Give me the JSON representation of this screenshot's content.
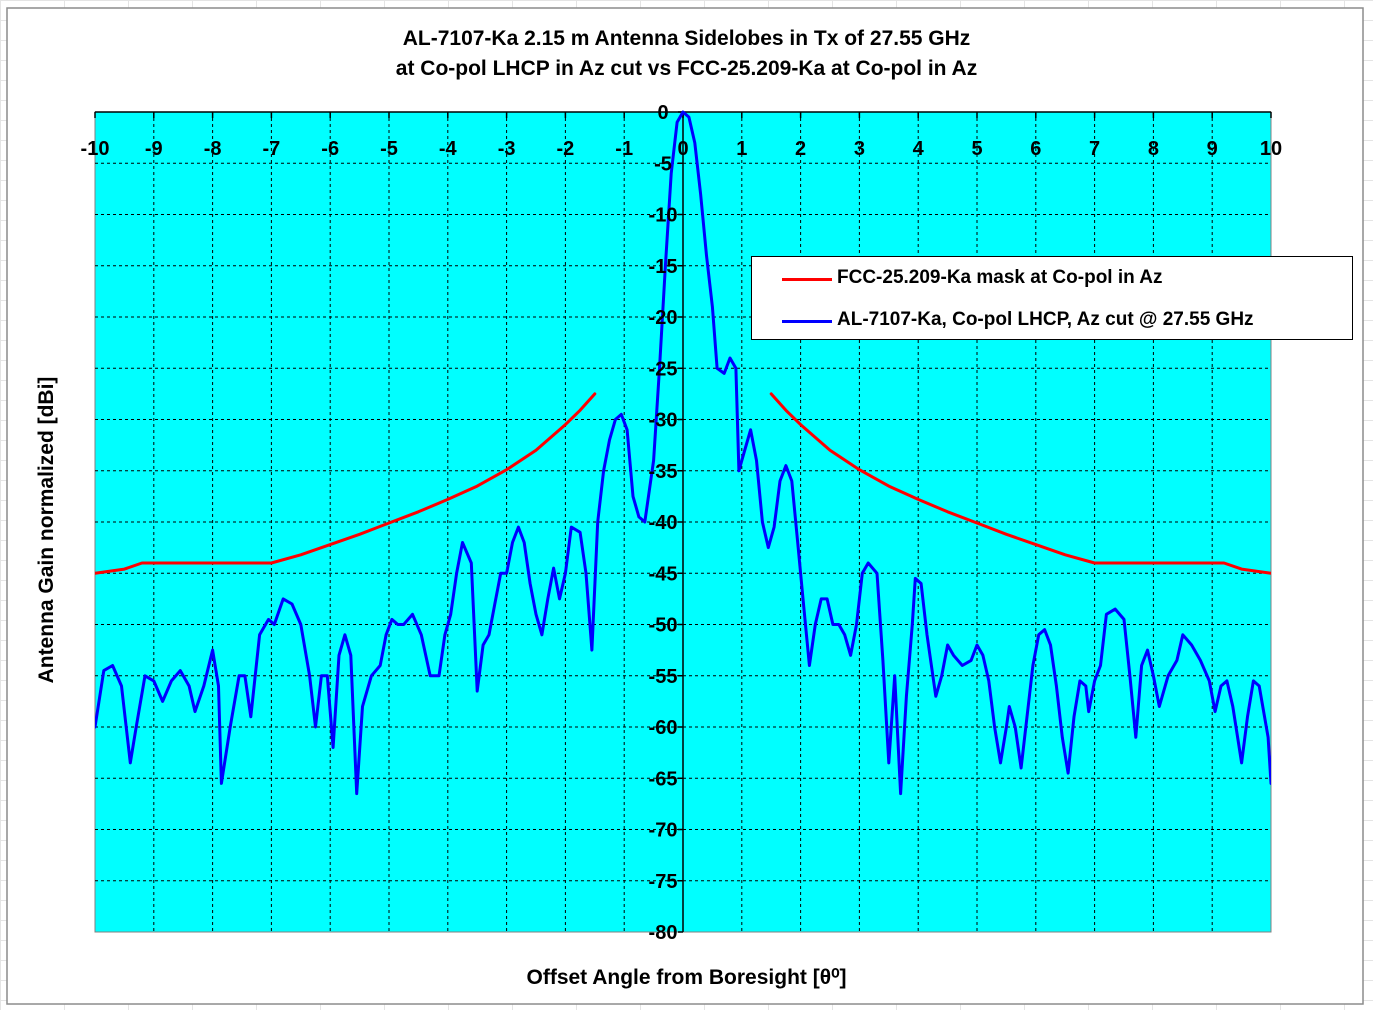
{
  "chart": {
    "title_line1": "AL-7107-Ka 2.15 m Antenna Sidelobes in Tx of 27.55 GHz",
    "title_line2": "at Co-pol LHCP in Az cut vs FCC-25.209-Ka at Co-pol in Az"
  },
  "colors": {
    "plot_background": "#00ffff",
    "mask": "#ff0000",
    "measured": "#0000ff",
    "gridline": "#000000"
  },
  "chart_data": {
    "type": "line",
    "title": "AL-7107-Ka 2.15 m Antenna Sidelobes in Tx of 27.55 GHz at Co-pol LHCP in Az cut vs FCC-25.209-Ka at Co-pol in Az",
    "xlabel": "Offset Angle from Boresight [θ⁰]",
    "ylabel": "Antenna Gain normalized [dBi]",
    "xlim": [
      -10,
      10
    ],
    "ylim": [
      -80,
      0
    ],
    "x_ticks": [
      "-10",
      "-9",
      "-8",
      "-7",
      "-6",
      "-5",
      "-4",
      "-3",
      "-2",
      "-1",
      "0",
      "1",
      "2",
      "3",
      "4",
      "5",
      "6",
      "7",
      "8",
      "9",
      "10"
    ],
    "y_ticks": [
      "0",
      "-5",
      "-10",
      "-15",
      "-20",
      "-25",
      "-30",
      "-35",
      "-40",
      "-45",
      "-50",
      "-55",
      "-60",
      "-65",
      "-70",
      "-75",
      "-80"
    ],
    "grid": true,
    "legend_position": "top-right",
    "series": [
      {
        "name": "FCC-25.209-Ka mask at Co-pol in Az",
        "color": "#ff0000",
        "segments": [
          [
            [
              -10,
              -45
            ],
            [
              -9.5,
              -44.6
            ],
            [
              -9.2,
              -44
            ],
            [
              -8.5,
              -44
            ],
            [
              -7.8,
              -44
            ],
            [
              -7,
              -44
            ],
            [
              -6.5,
              -43.2
            ],
            [
              -6,
              -42.2
            ],
            [
              -5.5,
              -41.2
            ],
            [
              -5,
              -40.1
            ],
            [
              -4.5,
              -39
            ],
            [
              -4,
              -37.8
            ],
            [
              -3.5,
              -36.5
            ],
            [
              -3,
              -34.9
            ],
            [
              -2.5,
              -33
            ],
            [
              -2,
              -30.5
            ],
            [
              -1.75,
              -29.1
            ],
            [
              -1.5,
              -27.5
            ]
          ],
          [
            [
              1.5,
              -27.5
            ],
            [
              1.75,
              -29.1
            ],
            [
              2,
              -30.5
            ],
            [
              2.5,
              -33
            ],
            [
              3,
              -34.9
            ],
            [
              3.5,
              -36.5
            ],
            [
              4,
              -37.8
            ],
            [
              4.5,
              -39
            ],
            [
              5,
              -40.1
            ],
            [
              5.5,
              -41.2
            ],
            [
              6,
              -42.2
            ],
            [
              6.5,
              -43.2
            ],
            [
              7,
              -44
            ],
            [
              7.8,
              -44
            ],
            [
              8.5,
              -44
            ],
            [
              9.2,
              -44
            ],
            [
              9.5,
              -44.6
            ],
            [
              10,
              -45
            ]
          ]
        ]
      },
      {
        "name": "AL-7107-Ka, Co-pol LHCP, Az cut @ 27.55 GHz",
        "color": "#0000ff",
        "points": [
          [
            -10,
            -60
          ],
          [
            -9.85,
            -54.5
          ],
          [
            -9.7,
            -54
          ],
          [
            -9.55,
            -56
          ],
          [
            -9.4,
            -63.5
          ],
          [
            -9.3,
            -60
          ],
          [
            -9.15,
            -55
          ],
          [
            -9,
            -55.5
          ],
          [
            -8.85,
            -57.5
          ],
          [
            -8.7,
            -55.5
          ],
          [
            -8.55,
            -54.5
          ],
          [
            -8.4,
            -56
          ],
          [
            -8.3,
            -58.5
          ],
          [
            -8.15,
            -56
          ],
          [
            -8,
            -52.5
          ],
          [
            -7.9,
            -56
          ],
          [
            -7.85,
            -65.5
          ],
          [
            -7.7,
            -60
          ],
          [
            -7.55,
            -55
          ],
          [
            -7.45,
            -55
          ],
          [
            -7.35,
            -59
          ],
          [
            -7.2,
            -51
          ],
          [
            -7.05,
            -49.5
          ],
          [
            -6.95,
            -50
          ],
          [
            -6.8,
            -47.5
          ],
          [
            -6.65,
            -48
          ],
          [
            -6.5,
            -50
          ],
          [
            -6.35,
            -55
          ],
          [
            -6.25,
            -60
          ],
          [
            -6.15,
            -55
          ],
          [
            -6.05,
            -55
          ],
          [
            -5.95,
            -62
          ],
          [
            -5.85,
            -53
          ],
          [
            -5.75,
            -51
          ],
          [
            -5.65,
            -53
          ],
          [
            -5.55,
            -66.5
          ],
          [
            -5.45,
            -58
          ],
          [
            -5.3,
            -55
          ],
          [
            -5.15,
            -54
          ],
          [
            -5.05,
            -51
          ],
          [
            -4.95,
            -49.5
          ],
          [
            -4.85,
            -50
          ],
          [
            -4.75,
            -50
          ],
          [
            -4.6,
            -49
          ],
          [
            -4.45,
            -51
          ],
          [
            -4.3,
            -55
          ],
          [
            -4.15,
            -55
          ],
          [
            -4.05,
            -51
          ],
          [
            -3.95,
            -49
          ],
          [
            -3.85,
            -45
          ],
          [
            -3.75,
            -42
          ],
          [
            -3.6,
            -44
          ],
          [
            -3.5,
            -56.5
          ],
          [
            -3.4,
            -52
          ],
          [
            -3.3,
            -51
          ],
          [
            -3.2,
            -48
          ],
          [
            -3.1,
            -45
          ],
          [
            -3,
            -45
          ],
          [
            -2.9,
            -42
          ],
          [
            -2.8,
            -40.5
          ],
          [
            -2.7,
            -42
          ],
          [
            -2.6,
            -46
          ],
          [
            -2.5,
            -49
          ],
          [
            -2.4,
            -51
          ],
          [
            -2.3,
            -47.5
          ],
          [
            -2.2,
            -44.5
          ],
          [
            -2.1,
            -47.5
          ],
          [
            -2,
            -45
          ],
          [
            -1.9,
            -40.5
          ],
          [
            -1.75,
            -41
          ],
          [
            -1.65,
            -45
          ],
          [
            -1.55,
            -52.5
          ],
          [
            -1.45,
            -40
          ],
          [
            -1.35,
            -35
          ],
          [
            -1.25,
            -32
          ],
          [
            -1.15,
            -30
          ],
          [
            -1.05,
            -29.5
          ],
          [
            -0.95,
            -31
          ],
          [
            -0.85,
            -37.5
          ],
          [
            -0.75,
            -39.5
          ],
          [
            -0.65,
            -40
          ],
          [
            -0.5,
            -34
          ],
          [
            -0.4,
            -25
          ],
          [
            -0.3,
            -15
          ],
          [
            -0.2,
            -6
          ],
          [
            -0.1,
            -1
          ],
          [
            0,
            0
          ],
          [
            0.1,
            -0.5
          ],
          [
            0.2,
            -3
          ],
          [
            0.3,
            -8
          ],
          [
            0.4,
            -14
          ],
          [
            0.5,
            -19
          ],
          [
            0.58,
            -25
          ],
          [
            0.7,
            -25.5
          ],
          [
            0.8,
            -24
          ],
          [
            0.9,
            -25
          ],
          [
            0.95,
            -35
          ],
          [
            1.05,
            -33
          ],
          [
            1.15,
            -31
          ],
          [
            1.25,
            -34
          ],
          [
            1.35,
            -40
          ],
          [
            1.45,
            -42.5
          ],
          [
            1.55,
            -40.5
          ],
          [
            1.65,
            -36
          ],
          [
            1.75,
            -34.5
          ],
          [
            1.85,
            -36
          ],
          [
            1.95,
            -42
          ],
          [
            2.05,
            -48
          ],
          [
            2.15,
            -54
          ],
          [
            2.25,
            -50
          ],
          [
            2.35,
            -47.5
          ],
          [
            2.45,
            -47.5
          ],
          [
            2.55,
            -50
          ],
          [
            2.65,
            -50
          ],
          [
            2.75,
            -51
          ],
          [
            2.85,
            -53
          ],
          [
            2.95,
            -50
          ],
          [
            3.05,
            -45
          ],
          [
            3.15,
            -44
          ],
          [
            3.3,
            -45
          ],
          [
            3.4,
            -53.5
          ],
          [
            3.5,
            -63.5
          ],
          [
            3.6,
            -55
          ],
          [
            3.7,
            -66.5
          ],
          [
            3.8,
            -57
          ],
          [
            3.9,
            -50
          ],
          [
            3.95,
            -45.5
          ],
          [
            4.05,
            -46
          ],
          [
            4.15,
            -51
          ],
          [
            4.3,
            -57
          ],
          [
            4.4,
            -55
          ],
          [
            4.5,
            -52
          ],
          [
            4.6,
            -53
          ],
          [
            4.75,
            -54
          ],
          [
            4.9,
            -53.5
          ],
          [
            5,
            -52
          ],
          [
            5.1,
            -53
          ],
          [
            5.2,
            -55.5
          ],
          [
            5.3,
            -60
          ],
          [
            5.4,
            -63.5
          ],
          [
            5.5,
            -60
          ],
          [
            5.55,
            -58
          ],
          [
            5.65,
            -60
          ],
          [
            5.75,
            -64
          ],
          [
            5.85,
            -59
          ],
          [
            5.95,
            -54
          ],
          [
            6.05,
            -51
          ],
          [
            6.15,
            -50.5
          ],
          [
            6.25,
            -52
          ],
          [
            6.35,
            -56
          ],
          [
            6.45,
            -61
          ],
          [
            6.55,
            -64.5
          ],
          [
            6.65,
            -59
          ],
          [
            6.75,
            -55.5
          ],
          [
            6.85,
            -56
          ],
          [
            6.9,
            -58.5
          ],
          [
            7,
            -55.5
          ],
          [
            7.1,
            -54
          ],
          [
            7.2,
            -49
          ],
          [
            7.35,
            -48.5
          ],
          [
            7.5,
            -49.5
          ],
          [
            7.6,
            -55
          ],
          [
            7.7,
            -61
          ],
          [
            7.8,
            -54
          ],
          [
            7.9,
            -52.5
          ],
          [
            8,
            -55
          ],
          [
            8.1,
            -58
          ],
          [
            8.25,
            -55
          ],
          [
            8.4,
            -53.5
          ],
          [
            8.5,
            -51
          ],
          [
            8.65,
            -52
          ],
          [
            8.8,
            -53.5
          ],
          [
            8.95,
            -55.5
          ],
          [
            9.05,
            -58.5
          ],
          [
            9.15,
            -56
          ],
          [
            9.25,
            -55.5
          ],
          [
            9.35,
            -58
          ],
          [
            9.5,
            -63.5
          ],
          [
            9.6,
            -59
          ],
          [
            9.7,
            -55.5
          ],
          [
            9.8,
            -56
          ],
          [
            9.95,
            -61
          ],
          [
            10,
            -65.5
          ],
          [
            10.05,
            -60
          ],
          [
            10.15,
            -60.5
          ],
          [
            10.25,
            -62
          ],
          [
            10.3,
            -67
          ]
        ]
      }
    ]
  }
}
